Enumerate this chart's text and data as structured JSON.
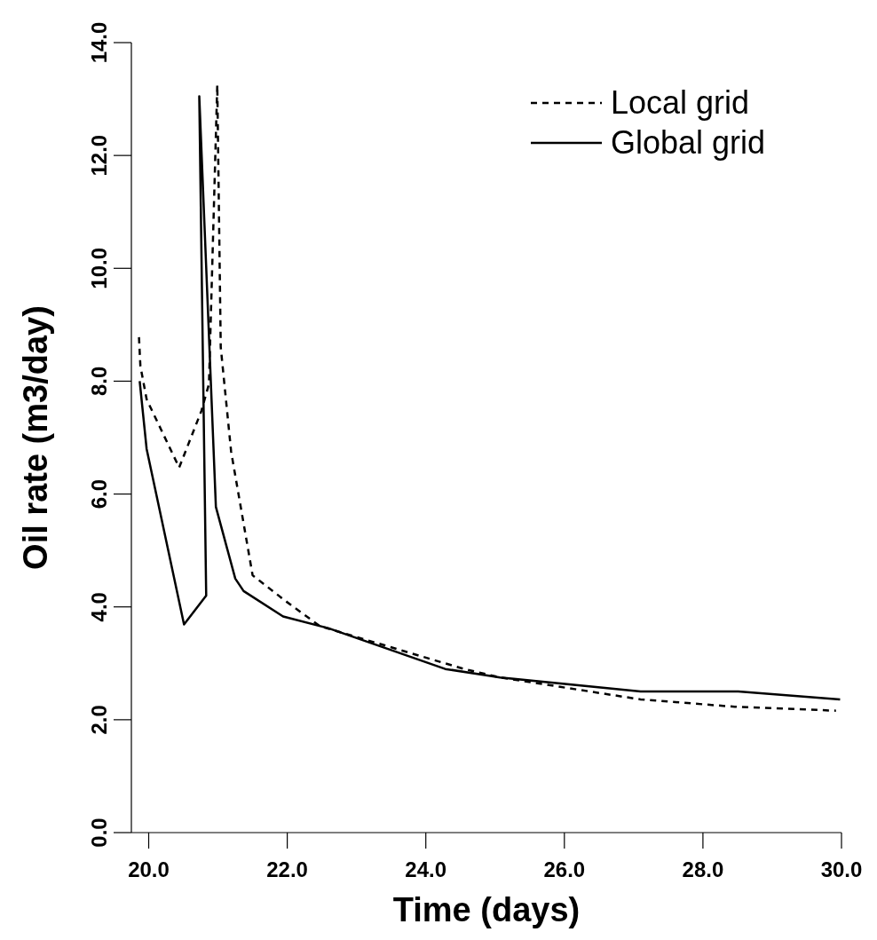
{
  "chart_data": {
    "type": "line",
    "xlabel": "Time (days)",
    "ylabel": "Oil rate (m3/day)",
    "xlim": [
      19.75,
      30.0
    ],
    "ylim": [
      0,
      14
    ],
    "xticks": [
      {
        "value": 20,
        "label": "20.0"
      },
      {
        "value": 22,
        "label": "22.0"
      },
      {
        "value": 24,
        "label": "24.0"
      },
      {
        "value": 26,
        "label": "26.0"
      },
      {
        "value": 28,
        "label": "28.0"
      },
      {
        "value": 30,
        "label": "30.0"
      }
    ],
    "yticks": [
      {
        "value": 0,
        "label": "0.0"
      },
      {
        "value": 2,
        "label": "2.0"
      },
      {
        "value": 4,
        "label": "4.0"
      },
      {
        "value": 6,
        "label": "6.0"
      },
      {
        "value": 8,
        "label": "8.0"
      },
      {
        "value": 10,
        "label": "10.0"
      },
      {
        "value": 12,
        "label": "12.0"
      },
      {
        "value": 14,
        "label": "14.0"
      }
    ],
    "grid": false,
    "legend": "top right",
    "series": [
      {
        "name": "Local grid",
        "color": "#000000",
        "line_style": "dashed",
        "x": [
          19.86,
          19.88,
          19.97,
          20.44,
          20.76,
          20.87,
          20.99,
          21.04,
          21.19,
          21.5,
          21.98,
          22.47,
          24.55,
          25.07,
          27.1,
          28.46,
          29.92
        ],
        "values": [
          8.78,
          8.27,
          7.68,
          6.47,
          7.47,
          7.95,
          13.25,
          8.6,
          6.75,
          4.56,
          4.1,
          3.66,
          2.9,
          2.75,
          2.36,
          2.23,
          2.16
        ]
      },
      {
        "name": "Global grid",
        "color": "#000000",
        "line_style": "solid",
        "x": [
          19.87,
          19.97,
          20.51,
          20.83,
          20.73,
          20.97,
          21.25,
          21.37,
          21.94,
          22.6,
          24.28,
          25.07,
          27.1,
          28.51,
          29.98
        ],
        "values": [
          8.0,
          6.8,
          3.69,
          4.2,
          13.05,
          5.77,
          4.5,
          4.28,
          3.83,
          3.62,
          2.9,
          2.75,
          2.5,
          2.5,
          2.36
        ]
      }
    ]
  }
}
